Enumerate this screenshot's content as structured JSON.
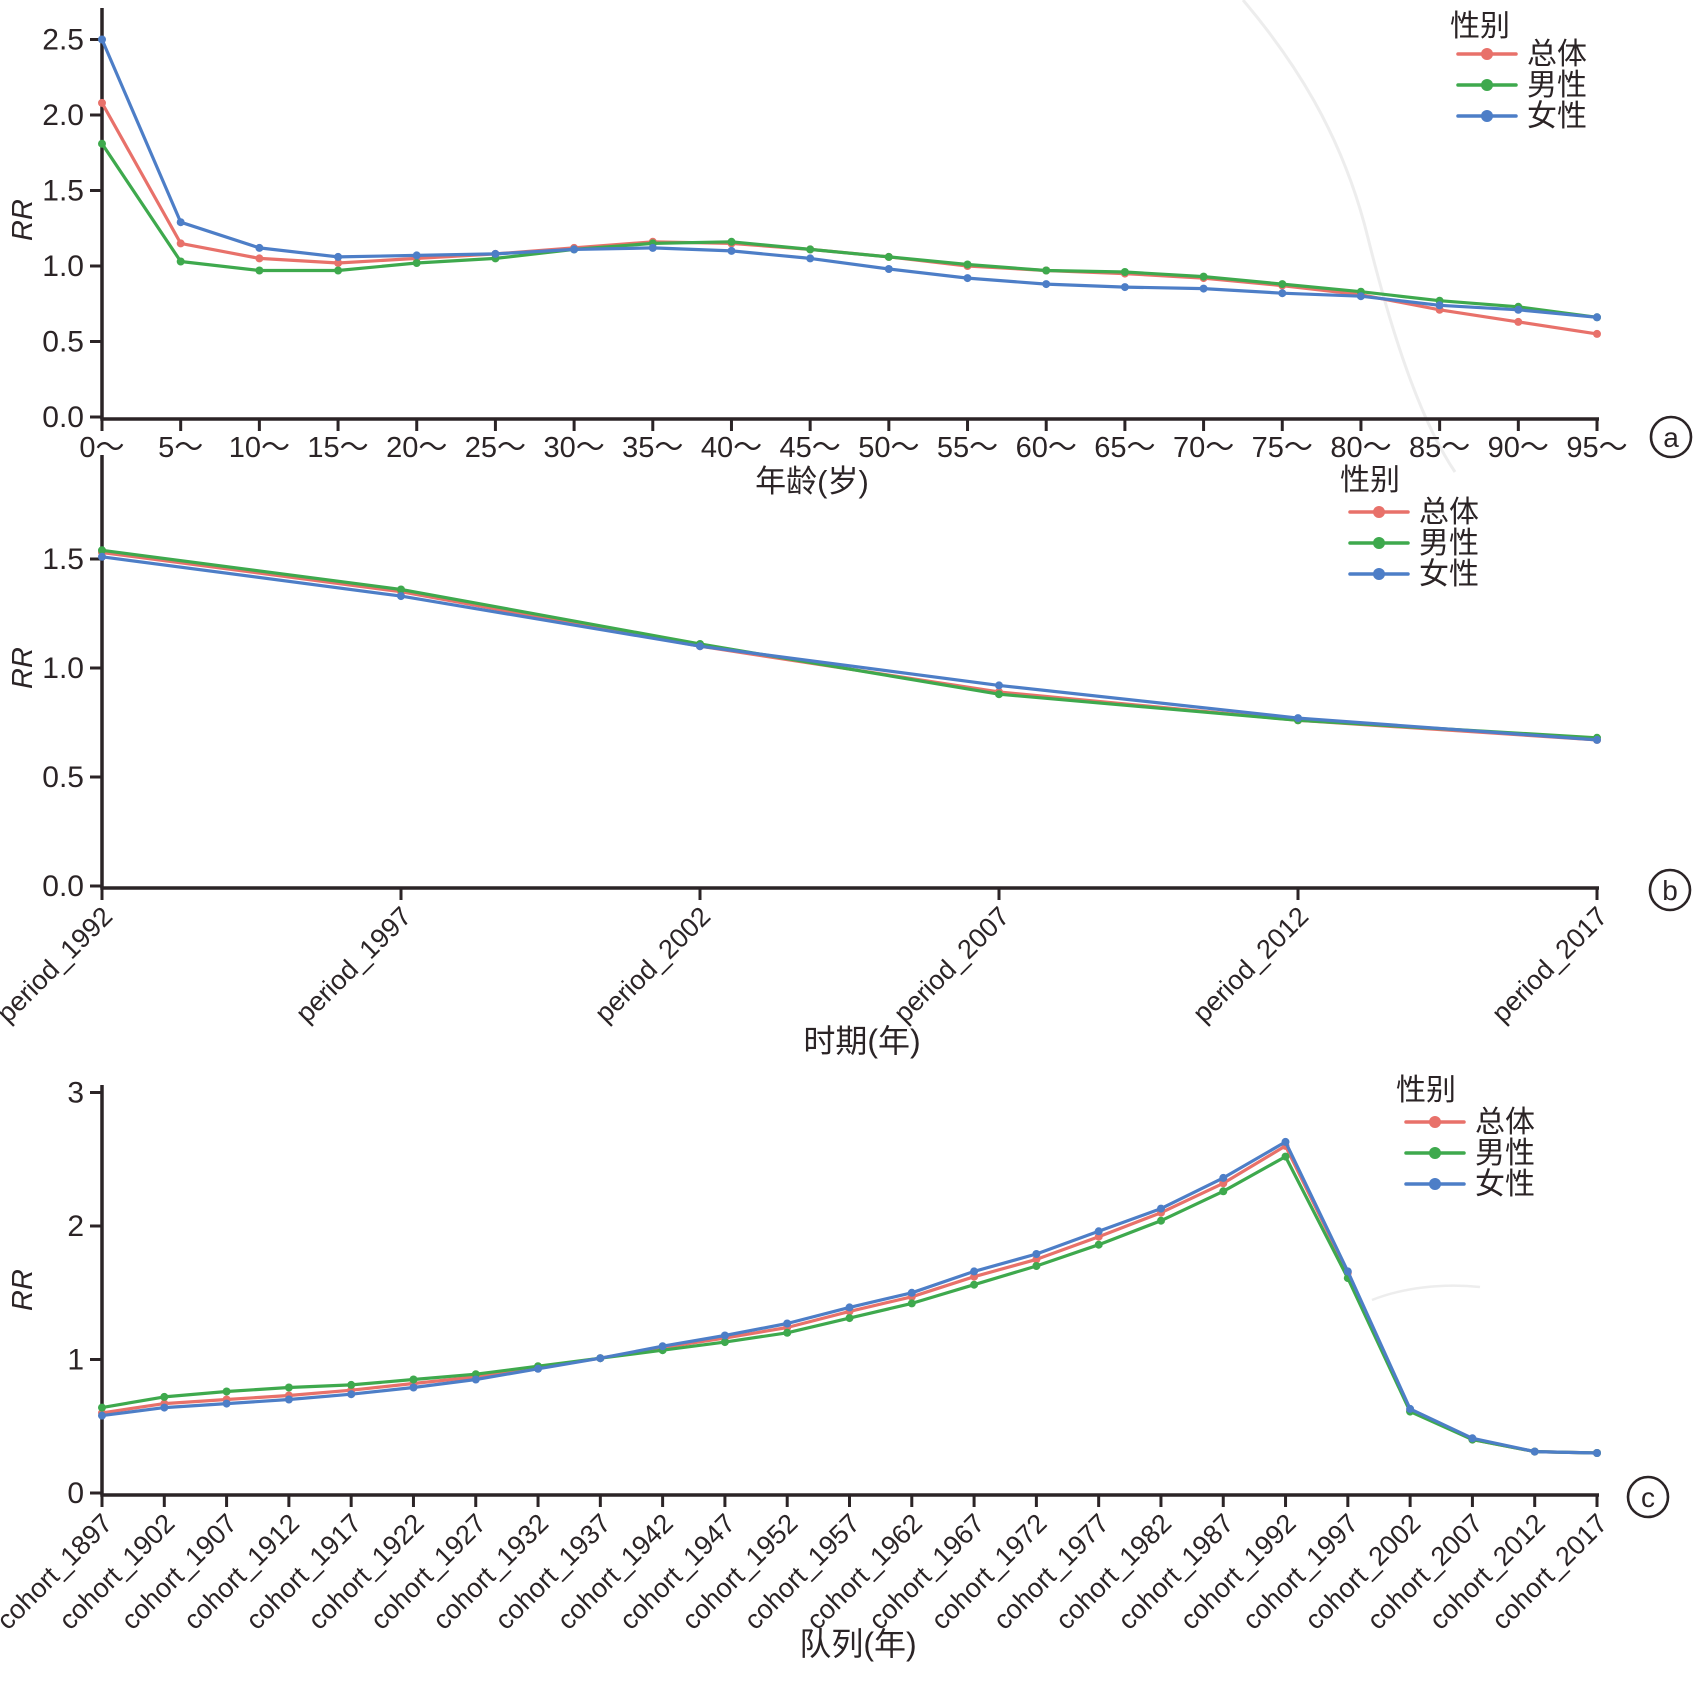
{
  "figure": {
    "background": "#ffffff",
    "text_color": "#2B2426",
    "axis_color": "#2B2426",
    "watermark_color": "#ededed",
    "legend_title": "性别",
    "series_colors": {
      "overall": "#E8716A",
      "male": "#3EA94D",
      "female": "#4D7EC7"
    }
  },
  "chart_data": [
    {
      "type": "line",
      "panel_label": "a",
      "xlabel": "年龄(岁)",
      "ylabel": "RR",
      "legend_title": "性别",
      "legend_position": "top-right",
      "grid": false,
      "ylim": [
        0,
        2.72
      ],
      "y_ticks": [
        0,
        0.5,
        1.0,
        1.5,
        2.0,
        2.5
      ],
      "y_tick_labels": [
        "0.0",
        "0.5",
        "1.0",
        "1.5",
        "2.0",
        "2.5"
      ],
      "categories": [
        "0～",
        "5～",
        "10～",
        "15～",
        "20～",
        "25～",
        "30～",
        "35～",
        "40～",
        "45～",
        "50～",
        "55～",
        "60～",
        "65～",
        "70～",
        "75～",
        "80～",
        "85～",
        "90～",
        "95～"
      ],
      "series": [
        {
          "key": "overall",
          "name": "总体",
          "color": "#E8716A",
          "values": [
            2.08,
            1.15,
            1.05,
            1.02,
            1.05,
            1.08,
            1.12,
            1.16,
            1.15,
            1.11,
            1.06,
            1.0,
            0.97,
            0.95,
            0.92,
            0.87,
            0.81,
            0.71,
            0.63,
            0.55
          ]
        },
        {
          "key": "male",
          "name": "男性",
          "color": "#3EA94D",
          "values": [
            1.81,
            1.03,
            0.97,
            0.97,
            1.02,
            1.05,
            1.11,
            1.15,
            1.16,
            1.11,
            1.06,
            1.01,
            0.97,
            0.96,
            0.93,
            0.88,
            0.83,
            0.77,
            0.73,
            0.66
          ]
        },
        {
          "key": "female",
          "name": "女性",
          "color": "#4D7EC7",
          "values": [
            2.5,
            1.29,
            1.12,
            1.06,
            1.07,
            1.08,
            1.11,
            1.12,
            1.1,
            1.05,
            0.98,
            0.92,
            0.88,
            0.86,
            0.85,
            0.82,
            0.8,
            0.74,
            0.71,
            0.66
          ]
        }
      ]
    },
    {
      "type": "line",
      "panel_label": "b",
      "xlabel": "时期(年)",
      "ylabel": "RR",
      "legend_title": "性别",
      "legend_position": "top-right",
      "grid": false,
      "ylim": [
        0,
        1.98
      ],
      "y_ticks": [
        0,
        0.5,
        1.0,
        1.5
      ],
      "y_tick_labels": [
        "0.0",
        "0.5",
        "1.0",
        "1.5"
      ],
      "categories": [
        "period_1992",
        "period_1997",
        "period_2002",
        "period_2007",
        "period_2012",
        "period_2017"
      ],
      "series": [
        {
          "key": "overall",
          "name": "总体",
          "color": "#E8716A",
          "values": [
            1.53,
            1.35,
            1.1,
            0.89,
            0.76,
            0.67
          ]
        },
        {
          "key": "male",
          "name": "男性",
          "color": "#3EA94D",
          "values": [
            1.54,
            1.36,
            1.11,
            0.88,
            0.76,
            0.68
          ]
        },
        {
          "key": "female",
          "name": "女性",
          "color": "#4D7EC7",
          "values": [
            1.51,
            1.33,
            1.1,
            0.92,
            0.77,
            0.67
          ]
        }
      ]
    },
    {
      "type": "line",
      "panel_label": "c",
      "xlabel": "队列(年)",
      "ylabel": "RR",
      "legend_title": "性别",
      "legend_position": "top-right",
      "grid": false,
      "ylim": [
        0,
        3.06
      ],
      "y_ticks": [
        0,
        1,
        2,
        3
      ],
      "y_tick_labels": [
        "0",
        "1",
        "2",
        "3"
      ],
      "categories": [
        "cohort_1897",
        "cohort_1902",
        "cohort_1907",
        "cohort_1912",
        "cohort_1917",
        "cohort_1922",
        "cohort_1927",
        "cohort_1932",
        "cohort_1937",
        "cohort_1942",
        "cohort_1947",
        "cohort_1952",
        "cohort_1957",
        "cohort_1962",
        "cohort_1967",
        "cohort_1972",
        "cohort_1977",
        "cohort_1982",
        "cohort_1987",
        "cohort_1992",
        "cohort_1997",
        "cohort_2002",
        "cohort_2007",
        "cohort_2012",
        "cohort_2017"
      ],
      "series": [
        {
          "key": "overall",
          "name": "总体",
          "color": "#E8716A",
          "values": [
            0.6,
            0.67,
            0.7,
            0.73,
            0.77,
            0.82,
            0.87,
            0.94,
            1.01,
            1.09,
            1.16,
            1.24,
            1.36,
            1.47,
            1.62,
            1.75,
            1.92,
            2.1,
            2.32,
            2.6,
            1.65,
            0.62,
            0.4,
            0.31,
            0.3
          ]
        },
        {
          "key": "male",
          "name": "男性",
          "color": "#3EA94D",
          "values": [
            0.64,
            0.72,
            0.76,
            0.79,
            0.81,
            0.85,
            0.89,
            0.95,
            1.01,
            1.07,
            1.13,
            1.2,
            1.31,
            1.42,
            1.56,
            1.7,
            1.86,
            2.04,
            2.26,
            2.52,
            1.61,
            0.61,
            0.4,
            0.31,
            0.3
          ]
        },
        {
          "key": "female",
          "name": "女性",
          "color": "#4D7EC7",
          "values": [
            0.58,
            0.64,
            0.67,
            0.7,
            0.74,
            0.79,
            0.85,
            0.93,
            1.01,
            1.1,
            1.18,
            1.27,
            1.39,
            1.5,
            1.66,
            1.79,
            1.96,
            2.13,
            2.36,
            2.63,
            1.66,
            0.63,
            0.41,
            0.31,
            0.3
          ]
        }
      ]
    }
  ]
}
